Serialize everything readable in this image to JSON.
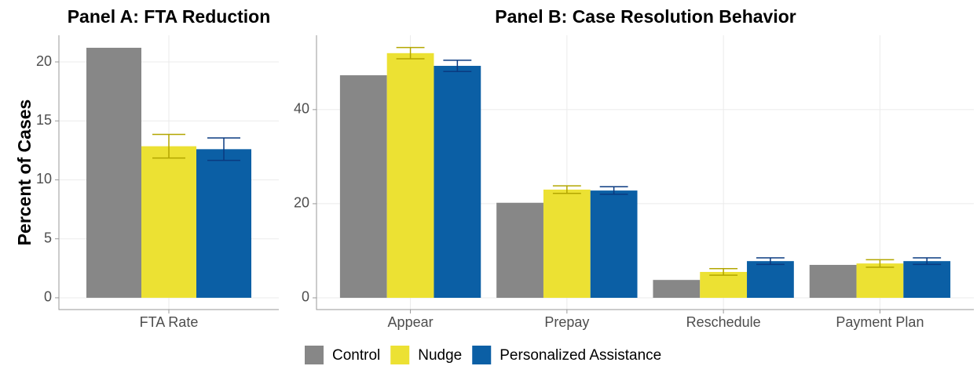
{
  "chart_data": [
    {
      "type": "bar",
      "title": "Panel A: FTA Reduction",
      "ylabel": "Percent of Cases",
      "categories": [
        "FTA Rate"
      ],
      "series": [
        {
          "name": "Control",
          "color": "#878787",
          "values": [
            21.2
          ]
        },
        {
          "name": "Nudge",
          "color": "#ece133",
          "error_color": "#b3a600",
          "values": [
            12.85
          ],
          "errors": [
            1.0
          ]
        },
        {
          "name": "Personalized Assistance",
          "color": "#0b5fa5",
          "error_color": "#0a3a80",
          "values": [
            12.6
          ],
          "errors": [
            0.95
          ]
        }
      ],
      "ylim": [
        -1.0,
        22.26
      ],
      "yticks": [
        0,
        5,
        10,
        15,
        20
      ],
      "grid": true,
      "legend": "bottom"
    },
    {
      "type": "bar",
      "title": "Panel B: Case Resolution Behavior",
      "categories": [
        "Appear",
        "Prepay",
        "Reschedule",
        "Payment Plan"
      ],
      "series": [
        {
          "name": "Control",
          "color": "#878787",
          "values": [
            47.3,
            20.2,
            3.8,
            7.0
          ]
        },
        {
          "name": "Nudge",
          "color": "#ece133",
          "error_color": "#b3a600",
          "values": [
            52.0,
            23.0,
            5.5,
            7.3
          ],
          "errors": [
            1.2,
            0.8,
            0.7,
            0.8
          ]
        },
        {
          "name": "Personalized Assistance",
          "color": "#0b5fa5",
          "error_color": "#0a3a80",
          "values": [
            49.3,
            22.8,
            7.8,
            7.8
          ],
          "errors": [
            1.2,
            0.8,
            0.7,
            0.7
          ]
        }
      ],
      "ylim": [
        -2.5,
        55.8
      ],
      "yticks": [
        0,
        20,
        40
      ],
      "grid": true
    }
  ]
}
